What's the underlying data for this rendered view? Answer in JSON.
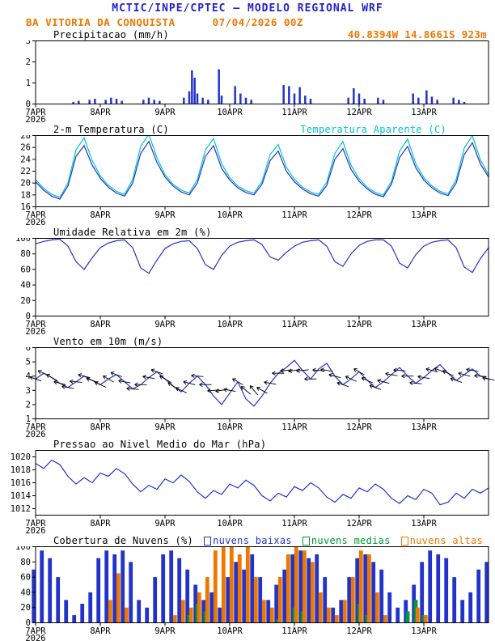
{
  "header": {
    "title": "MCTIC/INPE/CPTEC — MODELO REGIONAL WRF",
    "station": "BA VITORIA DA CONQUISTA",
    "run": "07/04/2026 00Z",
    "coords": "40.8394W 14.8661S 923m"
  },
  "colors": {
    "header_blue": "#2222cc",
    "header_orange": "#ee7700",
    "line_blue": "#2233cc",
    "cyan": "#00c5c5",
    "green": "#009933",
    "orange": "#ee7700",
    "arrow_black": "#000000"
  },
  "x_axis": {
    "labels": [
      "7APR",
      "8APR",
      "9APR",
      "10APR",
      "11APR",
      "12APR",
      "13APR"
    ],
    "tick_hours": [
      0,
      24,
      48,
      72,
      96,
      120,
      144
    ],
    "year": "2026",
    "xmax": 168
  },
  "chart_data": [
    {
      "type": "bar",
      "title": "Precipitacao (mm/h)",
      "ylim": [
        0,
        3
      ],
      "yticks": [
        0,
        1,
        2,
        3
      ],
      "bar_color": "#2233cc",
      "points": [
        [
          14,
          0.1
        ],
        [
          16,
          0.15
        ],
        [
          20,
          0.2
        ],
        [
          22,
          0.25
        ],
        [
          26,
          0.2
        ],
        [
          28,
          0.3
        ],
        [
          30,
          0.25
        ],
        [
          32,
          0.15
        ],
        [
          40,
          0.2
        ],
        [
          42,
          0.3
        ],
        [
          44,
          0.2
        ],
        [
          46,
          0.15
        ],
        [
          55,
          0.3
        ],
        [
          57,
          0.6
        ],
        [
          58,
          1.6
        ],
        [
          59,
          1.25
        ],
        [
          60,
          0.5
        ],
        [
          62,
          0.3
        ],
        [
          64,
          0.2
        ],
        [
          68,
          1.65
        ],
        [
          69,
          0.4
        ],
        [
          74,
          0.85
        ],
        [
          76,
          0.5
        ],
        [
          78,
          0.3
        ],
        [
          80,
          0.2
        ],
        [
          92,
          0.9
        ],
        [
          94,
          0.85
        ],
        [
          96,
          0.5
        ],
        [
          98,
          0.8
        ],
        [
          100,
          0.4
        ],
        [
          102,
          0.25
        ],
        [
          116,
          0.3
        ],
        [
          118,
          0.75
        ],
        [
          120,
          0.5
        ],
        [
          122,
          0.25
        ],
        [
          127,
          0.3
        ],
        [
          129,
          0.2
        ],
        [
          140,
          0.5
        ],
        [
          142,
          0.3
        ],
        [
          145,
          0.65
        ],
        [
          147,
          0.35
        ],
        [
          149,
          0.2
        ],
        [
          155,
          0.3
        ],
        [
          157,
          0.2
        ],
        [
          159,
          0.1
        ]
      ]
    },
    {
      "type": "line",
      "title": "2-m Temperatura (C)",
      "right_title": "Temperatura Aparente (C)",
      "ylim": [
        16,
        28
      ],
      "yticks": [
        16,
        18,
        20,
        22,
        24,
        26,
        28
      ],
      "x_step": 3,
      "series": [
        {
          "name": "2-m Temperatura (C)",
          "color": "#2233cc",
          "values": [
            20.2,
            18.8,
            17.8,
            17.3,
            19.5,
            24.5,
            26.3,
            23.0,
            20.8,
            19.3,
            18.3,
            17.8,
            20.0,
            25.0,
            27.0,
            23.5,
            21.0,
            19.5,
            18.5,
            18.0,
            20.0,
            24.5,
            26.3,
            22.5,
            20.5,
            19.2,
            18.4,
            18.0,
            19.8,
            23.8,
            25.4,
            22.0,
            20.2,
            19.0,
            18.2,
            17.8,
            19.6,
            24.0,
            25.8,
            22.3,
            20.3,
            19.0,
            18.1,
            17.7,
            19.8,
            24.3,
            26.2,
            22.6,
            20.5,
            19.2,
            18.3,
            17.9,
            20.0,
            24.8,
            26.8,
            23.2,
            21.0
          ]
        },
        {
          "name": "Temperatura Aparente (C)",
          "color": "#00c5c5",
          "values": [
            20.6,
            19.1,
            18.1,
            17.6,
            20.0,
            25.6,
            27.6,
            23.8,
            21.2,
            19.6,
            18.6,
            18.1,
            20.6,
            26.2,
            28.2,
            24.3,
            21.4,
            19.8,
            18.8,
            18.3,
            20.6,
            25.6,
            27.5,
            23.3,
            20.9,
            19.5,
            18.7,
            18.3,
            20.3,
            24.8,
            26.5,
            22.7,
            20.6,
            19.3,
            18.5,
            18.1,
            20.1,
            25.0,
            27.0,
            23.0,
            20.7,
            19.3,
            18.4,
            18.0,
            20.3,
            25.4,
            27.4,
            23.3,
            20.9,
            19.5,
            18.6,
            18.2,
            20.6,
            25.9,
            28.0,
            23.9,
            21.4
          ]
        }
      ]
    },
    {
      "type": "line",
      "title": "Umidade Relativa em 2m (%)",
      "ylim": [
        0,
        100
      ],
      "yticks": [
        0,
        20,
        40,
        60,
        80,
        100
      ],
      "x_step": 3,
      "series": [
        {
          "name": "Umidade Relativa em 2m (%)",
          "color": "#2233cc",
          "values": [
            93,
            96,
            98,
            99,
            90,
            70,
            60,
            75,
            88,
            94,
            97,
            98,
            88,
            62,
            55,
            72,
            87,
            93,
            96,
            97,
            87,
            66,
            60,
            78,
            90,
            95,
            97,
            98,
            92,
            76,
            72,
            82,
            90,
            95,
            97,
            98,
            90,
            70,
            64,
            80,
            91,
            96,
            98,
            98,
            90,
            68,
            62,
            79,
            90,
            95,
            97,
            98,
            88,
            63,
            56,
            74,
            88
          ]
        }
      ]
    },
    {
      "type": "line",
      "title": "Vento em 10m (m/s)",
      "ylim": [
        1,
        6
      ],
      "yticks": [
        1,
        2,
        3,
        4,
        5,
        6
      ],
      "x_step": 3,
      "series": [
        {
          "name": "Vento em 10m (m/s)",
          "color": "#2233cc",
          "values": [
            3.8,
            4.2,
            3.9,
            3.5,
            3.2,
            3.6,
            4.0,
            3.7,
            3.4,
            3.8,
            4.1,
            3.6,
            3.1,
            3.4,
            3.9,
            4.3,
            3.8,
            3.3,
            2.9,
            3.5,
            4.0,
            3.4,
            2.6,
            2.0,
            2.8,
            3.6,
            2.4,
            1.9,
            2.6,
            3.5,
            4.2,
            4.6,
            5.1,
            4.4,
            3.8,
            4.5,
            4.9,
            4.0,
            3.4,
            3.8,
            4.3,
            3.7,
            3.2,
            3.6,
            4.1,
            4.6,
            4.0,
            3.5,
            3.9,
            4.4,
            4.8,
            4.2,
            3.7,
            4.1,
            4.5,
            4.0,
            3.8
          ]
        }
      ],
      "wind_dirs": [
        110,
        115,
        120,
        105,
        100,
        95,
        105,
        110,
        115,
        120,
        110,
        100,
        95,
        90,
        100,
        110,
        120,
        125,
        115,
        105,
        95,
        90,
        85,
        80,
        100,
        120,
        130,
        140,
        120,
        100,
        90,
        85,
        80,
        85,
        90,
        95,
        100,
        105,
        110,
        115,
        120,
        115,
        110,
        105,
        100,
        95,
        90,
        95,
        100,
        105,
        110,
        115,
        110,
        105,
        100,
        95,
        100
      ]
    },
    {
      "type": "line",
      "title": "Pressao ao Nivel Medio do Mar (hPa)",
      "ylim": [
        1011,
        1021
      ],
      "yticks": [
        1012,
        1014,
        1016,
        1018,
        1020
      ],
      "x_step": 3,
      "series": [
        {
          "name": "Pressao ao Nivel Medio do Mar (hPa)",
          "color": "#2233cc",
          "values": [
            1019.0,
            1018.2,
            1019.5,
            1018.8,
            1017.0,
            1015.8,
            1016.8,
            1016.0,
            1017.5,
            1017.0,
            1018.2,
            1017.4,
            1015.8,
            1014.6,
            1015.6,
            1015.0,
            1016.6,
            1016.0,
            1017.2,
            1016.2,
            1014.6,
            1013.6,
            1014.8,
            1014.2,
            1015.8,
            1015.2,
            1016.4,
            1015.6,
            1014.0,
            1013.2,
            1014.4,
            1013.8,
            1015.4,
            1014.8,
            1016.0,
            1015.2,
            1013.8,
            1013.0,
            1014.2,
            1013.6,
            1015.2,
            1014.6,
            1015.8,
            1015.0,
            1013.6,
            1012.8,
            1014.0,
            1013.4,
            1015.0,
            1014.4,
            1012.6,
            1013.0,
            1014.4,
            1013.6,
            1015.0,
            1014.4,
            1015.2
          ]
        }
      ]
    },
    {
      "type": "bar",
      "title": "Cobertura de Nuvens (%)",
      "ylim": [
        0,
        100
      ],
      "yticks": [
        0,
        20,
        40,
        60,
        80,
        100
      ],
      "x_step": 3,
      "legend": [
        {
          "label": "nuvens baixas",
          "color": "#2233cc"
        },
        {
          "label": "nuvens medias",
          "color": "#009933"
        },
        {
          "label": "nuvens altas",
          "color": "#ee7700"
        }
      ],
      "series": [
        {
          "name": "nuvens baixas",
          "color": "#2233cc",
          "values": [
            70,
            95,
            85,
            60,
            30,
            10,
            25,
            40,
            85,
            95,
            90,
            95,
            80,
            30,
            20,
            60,
            90,
            95,
            85,
            70,
            50,
            30,
            40,
            20,
            60,
            80,
            70,
            90,
            60,
            30,
            50,
            70,
            90,
            95,
            85,
            90,
            60,
            20,
            30,
            60,
            85,
            90,
            80,
            70,
            40,
            20,
            30,
            50,
            80,
            95,
            90,
            85,
            60,
            30,
            40,
            70,
            80
          ]
        },
        {
          "name": "nuvens medias",
          "color": "#009933",
          "values": [
            0,
            0,
            0,
            0,
            0,
            0,
            0,
            0,
            0,
            0,
            0,
            0,
            0,
            0,
            0,
            0,
            0,
            0,
            0,
            10,
            25,
            15,
            0,
            0,
            0,
            0,
            0,
            0,
            0,
            0,
            5,
            0,
            20,
            15,
            0,
            0,
            0,
            0,
            0,
            0,
            25,
            10,
            0,
            0,
            0,
            0,
            15,
            30,
            10,
            0,
            0,
            0,
            0,
            0,
            0,
            0,
            0
          ]
        },
        {
          "name": "nuvens altas",
          "color": "#ee7700",
          "values": [
            0,
            0,
            0,
            0,
            0,
            0,
            0,
            0,
            0,
            30,
            65,
            20,
            0,
            0,
            0,
            0,
            0,
            10,
            30,
            20,
            40,
            60,
            95,
            100,
            100,
            90,
            100,
            60,
            30,
            20,
            60,
            90,
            100,
            95,
            80,
            40,
            20,
            10,
            30,
            60,
            95,
            90,
            40,
            10,
            0,
            0,
            0,
            20,
            10,
            0,
            0,
            0,
            0,
            0,
            0,
            0,
            0
          ]
        }
      ]
    }
  ]
}
